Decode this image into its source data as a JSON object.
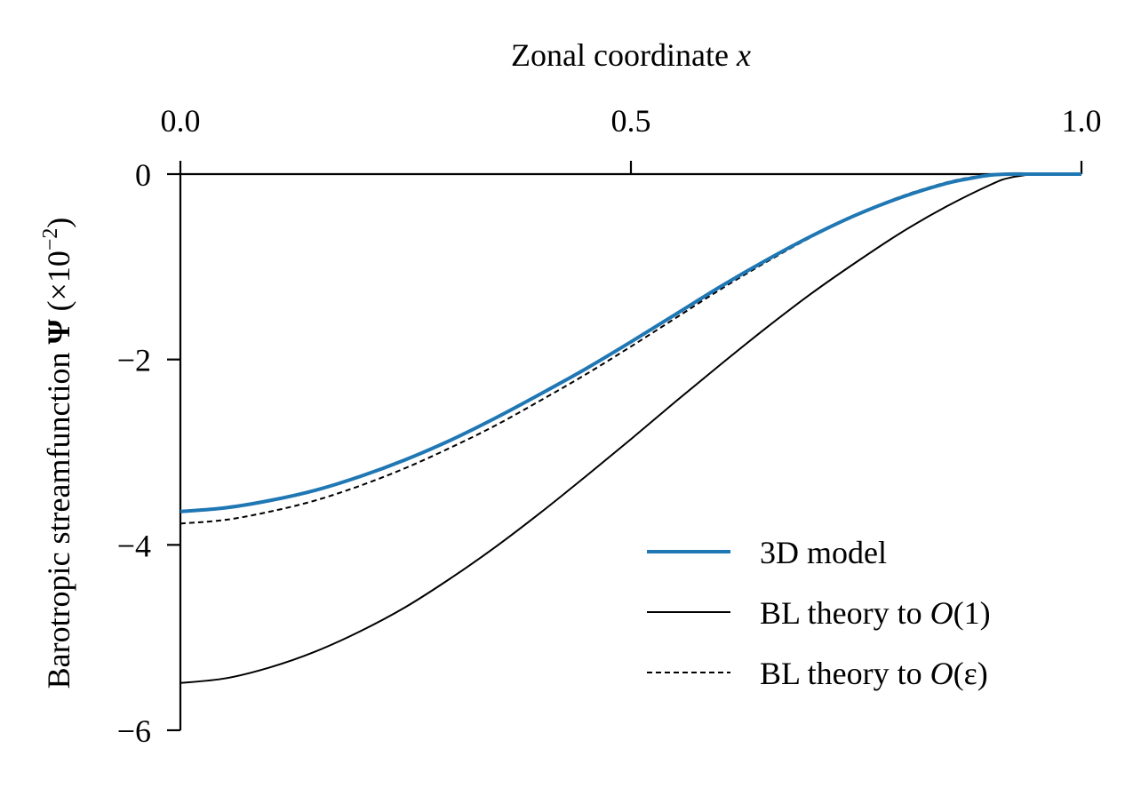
{
  "chart_data": {
    "type": "line",
    "xlabel": "Zonal coordinate x",
    "xlabel_parts": {
      "text": "Zonal coordinate ",
      "var": "x"
    },
    "ylabel": "Barotropic streamfunction Ψ (×10⁻²)",
    "ylabel_parts": {
      "text": "Barotropic streamfunction ",
      "symbol": "Ψ",
      "unit_pre": " (×10",
      "unit_exp": "−2",
      "unit_post": ")"
    },
    "x_axis_position": "top",
    "xlim": [
      0,
      1
    ],
    "ylim": [
      -6,
      0
    ],
    "xticks": [
      {
        "value": 0,
        "label": "0.0"
      },
      {
        "value": 0.5,
        "label": "0.5"
      },
      {
        "value": 1,
        "label": "1.0"
      }
    ],
    "yticks": [
      {
        "value": 0,
        "label": "0"
      },
      {
        "value": -2,
        "label": "−2"
      },
      {
        "value": -4,
        "label": "−4"
      },
      {
        "value": -6,
        "label": "−6"
      }
    ],
    "grid": false,
    "legend_position": "lower-right",
    "series": [
      {
        "name": "3D model",
        "label_parts": {
          "text": "3D model",
          "math": "",
          "arg": ""
        },
        "color": "#1f77b4",
        "style": "solid",
        "x": [
          0,
          0.05,
          0.1,
          0.15,
          0.2,
          0.25,
          0.3,
          0.35,
          0.4,
          0.45,
          0.5,
          0.55,
          0.6,
          0.65,
          0.7,
          0.75,
          0.8,
          0.85,
          0.88,
          0.9,
          0.92,
          0.95,
          1.0
        ],
        "values": [
          -3.64,
          -3.6,
          -3.52,
          -3.41,
          -3.26,
          -3.08,
          -2.87,
          -2.63,
          -2.37,
          -2.1,
          -1.81,
          -1.51,
          -1.21,
          -0.93,
          -0.67,
          -0.44,
          -0.25,
          -0.1,
          -0.04,
          -0.01,
          0.0,
          0.0,
          0.0
        ]
      },
      {
        "name": "BL theory to O(1)",
        "label_parts": {
          "text": "BL theory to ",
          "math": "O",
          "arg": "(1)"
        },
        "color": "#000000",
        "style": "solid-thin",
        "x": [
          0,
          0.05,
          0.1,
          0.15,
          0.2,
          0.25,
          0.3,
          0.35,
          0.4,
          0.45,
          0.5,
          0.55,
          0.6,
          0.65,
          0.7,
          0.75,
          0.8,
          0.85,
          0.9,
          0.92,
          0.95,
          1.0
        ],
        "values": [
          -5.49,
          -5.44,
          -5.32,
          -5.15,
          -4.93,
          -4.67,
          -4.36,
          -4.02,
          -3.65,
          -3.26,
          -2.86,
          -2.45,
          -2.05,
          -1.66,
          -1.29,
          -0.95,
          -0.63,
          -0.35,
          -0.11,
          -0.04,
          0.0,
          0.0
        ]
      },
      {
        "name": "BL theory to O(ε)",
        "label_parts": {
          "text": "BL theory to ",
          "math": "O",
          "arg": "(ε)"
        },
        "color": "#000000",
        "style": "dashed",
        "x": [
          0,
          0.05,
          0.1,
          0.15,
          0.2,
          0.25,
          0.3,
          0.35,
          0.4,
          0.45,
          0.5,
          0.55,
          0.6,
          0.65,
          0.7,
          0.75,
          0.8,
          0.85,
          0.88,
          0.9,
          0.92,
          0.95,
          1.0
        ],
        "values": [
          -3.77,
          -3.73,
          -3.64,
          -3.52,
          -3.36,
          -3.17,
          -2.95,
          -2.71,
          -2.44,
          -2.16,
          -1.86,
          -1.55,
          -1.24,
          -0.95,
          -0.68,
          -0.44,
          -0.24,
          -0.09,
          -0.03,
          -0.01,
          0.0,
          0.0,
          0.0
        ]
      }
    ]
  }
}
